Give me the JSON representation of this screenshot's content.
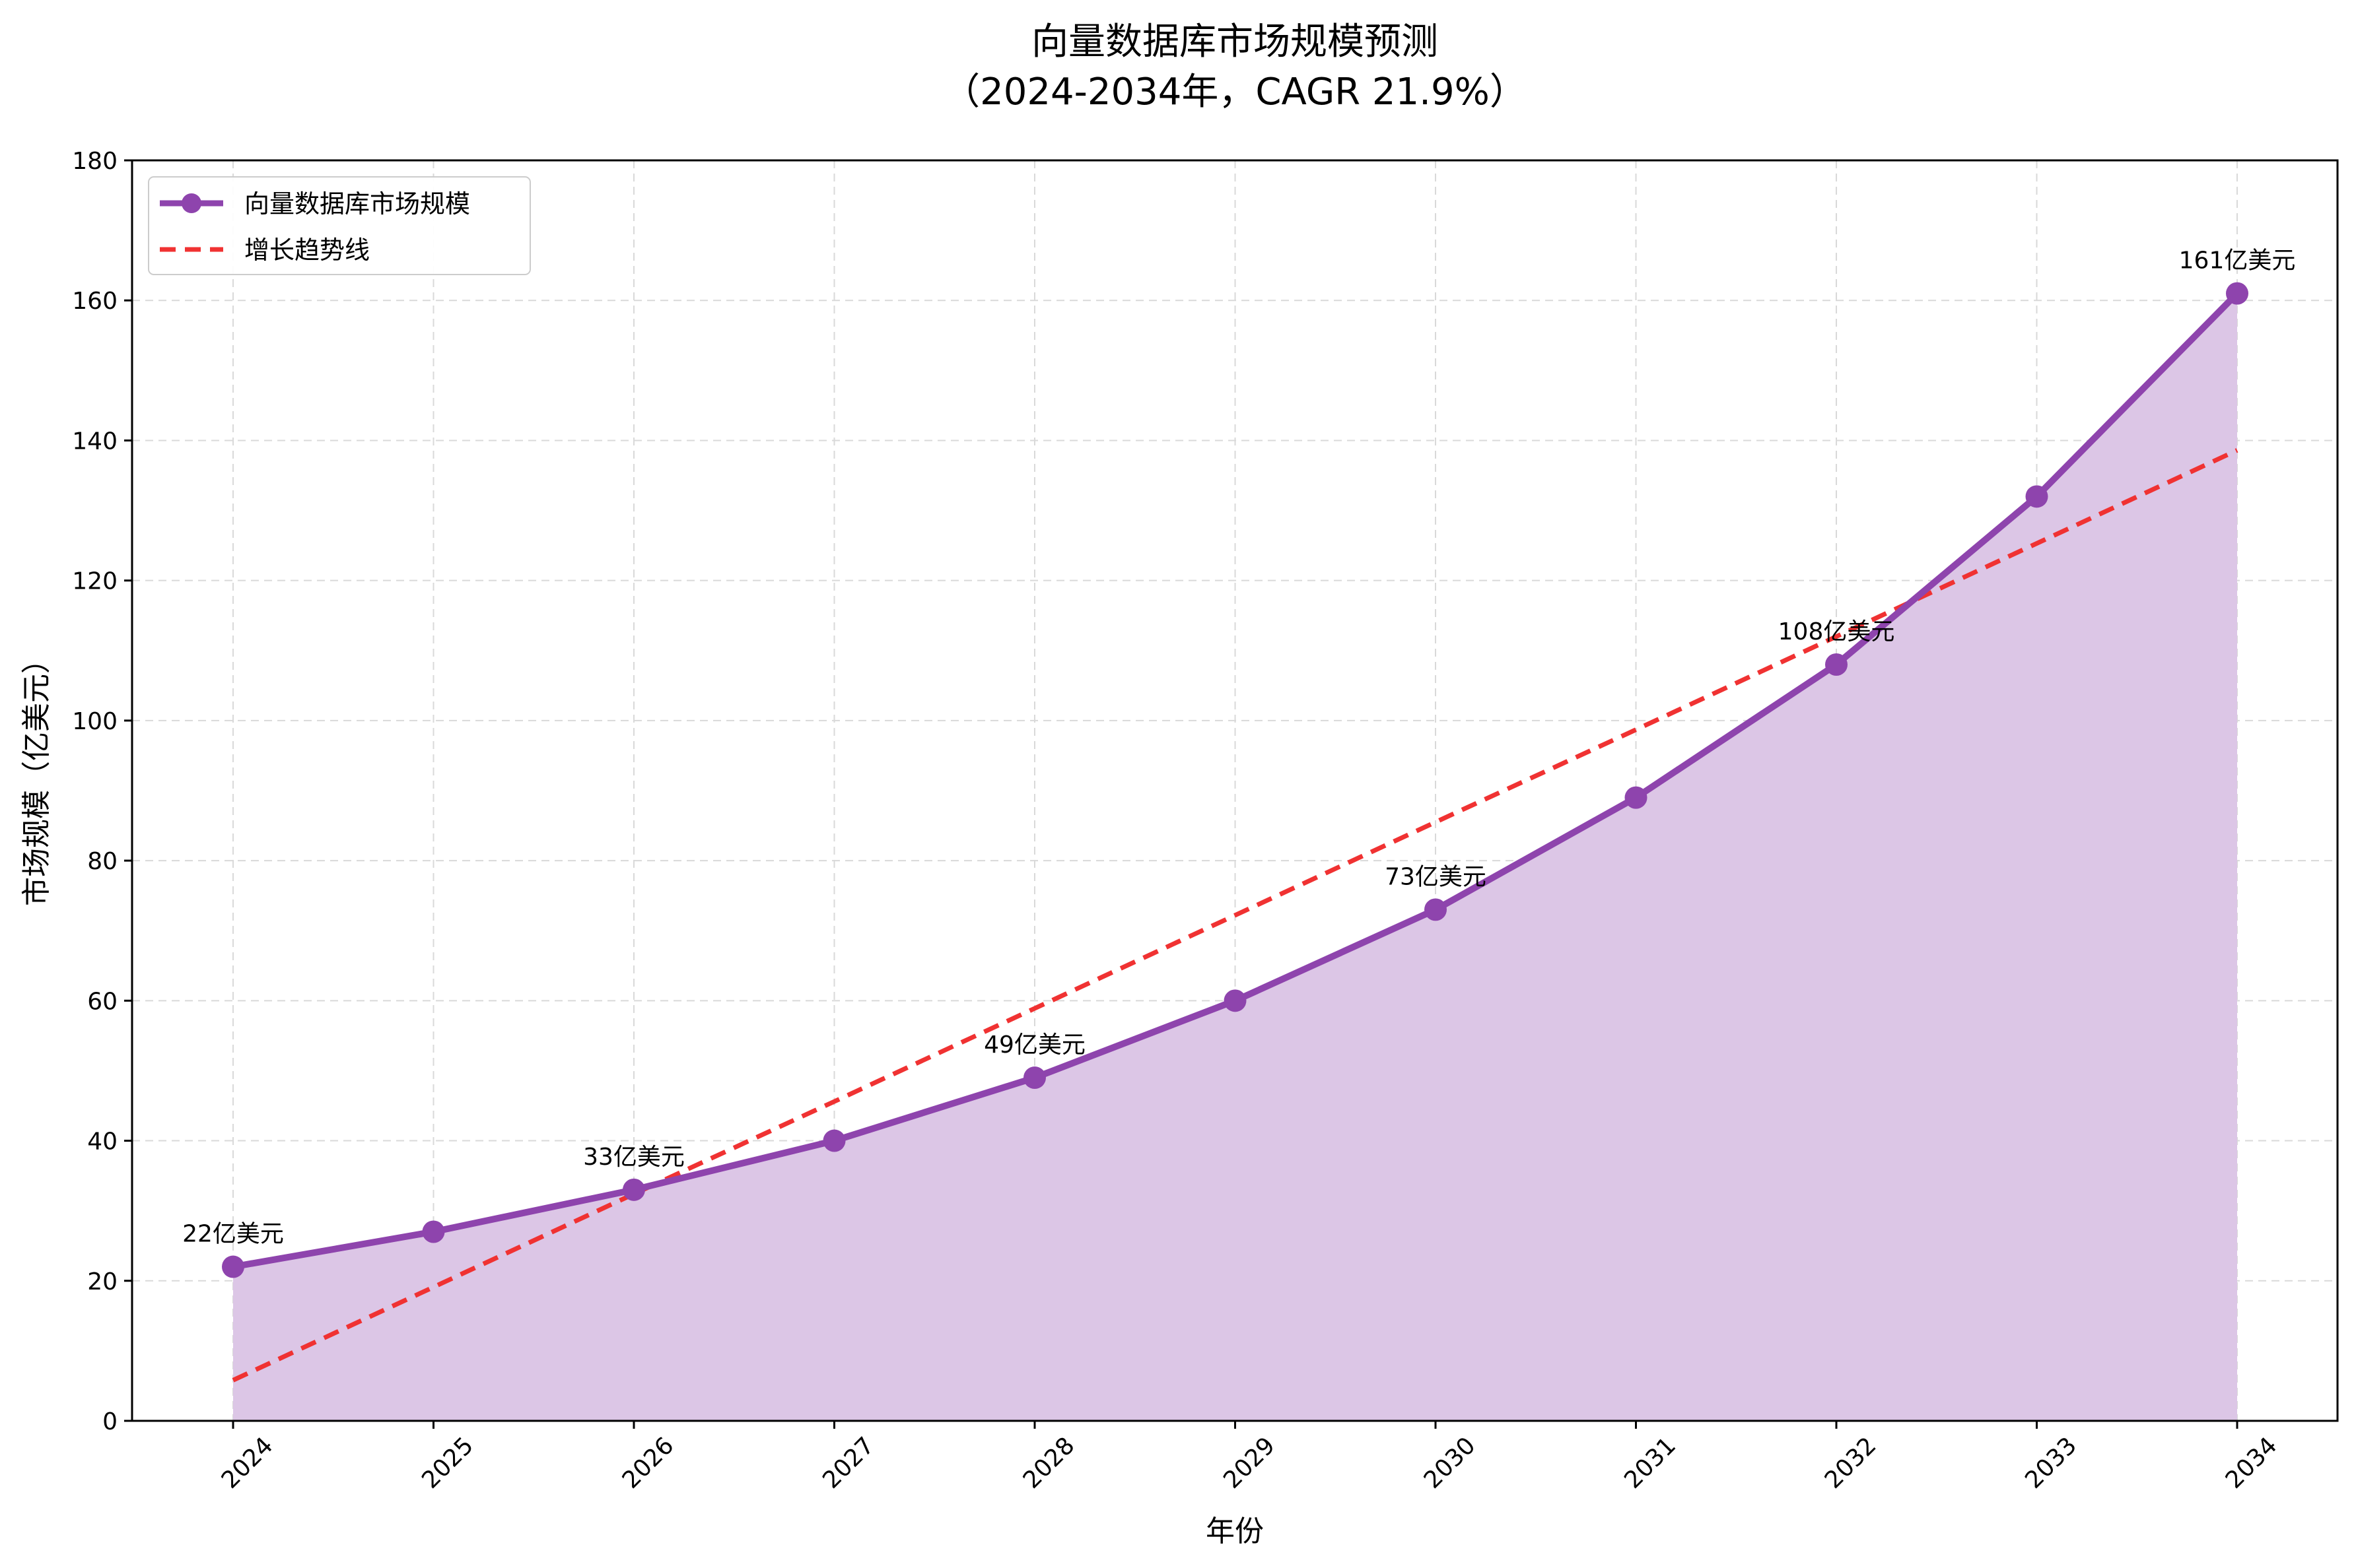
{
  "chart_data": {
    "type": "line",
    "title_line1": "向量数据库市场规模预测",
    "title_line2": "（2024-2034年，CAGR 21.9%）",
    "xlabel": "年份",
    "ylabel": "市场规模（亿美元）",
    "categories": [
      "2024",
      "2025",
      "2026",
      "2027",
      "2028",
      "2029",
      "2030",
      "2031",
      "2032",
      "2033",
      "2034"
    ],
    "series": [
      {
        "name": "向量数据库市场规模",
        "values": [
          22,
          27,
          33,
          40,
          49,
          60,
          73,
          89,
          108,
          132,
          161
        ],
        "color": "#8e44ad",
        "fill_color": "#dcc6e6"
      },
      {
        "name": "增长趋势线",
        "style": "dashed",
        "color": "#f03232",
        "values": [
          5.8,
          19.1,
          32.4,
          45.6,
          58.9,
          72.2,
          85.5,
          98.7,
          112.0,
          125.3,
          138.6
        ]
      }
    ],
    "annotations": [
      {
        "x": "2024",
        "value": 22,
        "label": "22亿美元"
      },
      {
        "x": "2026",
        "value": 33,
        "label": "33亿美元"
      },
      {
        "x": "2028",
        "value": 49,
        "label": "49亿美元"
      },
      {
        "x": "2030",
        "value": 73,
        "label": "73亿美元"
      },
      {
        "x": "2032",
        "value": 108,
        "label": "108亿美元"
      },
      {
        "x": "2034",
        "value": 161,
        "label": "161亿美元"
      }
    ],
    "ylim": [
      0,
      180
    ],
    "yticks": [
      0,
      20,
      40,
      60,
      80,
      100,
      120,
      140,
      160,
      180
    ],
    "grid": true,
    "legend_position": "top-left"
  }
}
